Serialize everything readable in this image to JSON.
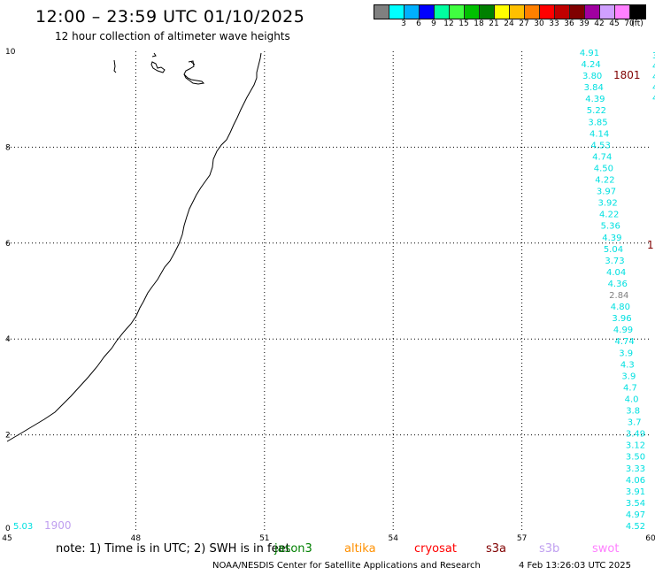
{
  "title": "12:00 – 23:59 UTC 01/10/2025",
  "subtitle": "12 hour collection of altimeter wave heights",
  "legend": {
    "unit": "(ft)",
    "swatches": [
      {
        "color": "#808080",
        "label": ""
      },
      {
        "color": "#00ffff",
        "label": "3"
      },
      {
        "color": "#00b0ff",
        "label": "6"
      },
      {
        "color": "#0000ff",
        "label": "9"
      },
      {
        "color": "#00ffa0",
        "label": "12"
      },
      {
        "color": "#40ff40",
        "label": "15"
      },
      {
        "color": "#00c000",
        "label": "18"
      },
      {
        "color": "#008000",
        "label": "21"
      },
      {
        "color": "#ffff00",
        "label": "24"
      },
      {
        "color": "#ffc000",
        "label": "27"
      },
      {
        "color": "#ff8000",
        "label": "30"
      },
      {
        "color": "#ff0000",
        "label": "33"
      },
      {
        "color": "#c00000",
        "label": "36"
      },
      {
        "color": "#800000",
        "label": "39"
      },
      {
        "color": "#a000a0",
        "label": "42"
      },
      {
        "color": "#d0a0ff",
        "label": "45"
      },
      {
        "color": "#ff80ff",
        "label": "70"
      },
      {
        "color": "#000000",
        "label": ""
      }
    ]
  },
  "axes": {
    "x_ticks": [
      "45",
      "48",
      "51",
      "54",
      "57",
      "60"
    ],
    "y_ticks": [
      "0",
      "2",
      "4",
      "6",
      "8",
      "10"
    ]
  },
  "track_main": {
    "color": "#00e0e0",
    "values": [
      "4.91",
      "4.24",
      "3.80",
      "3.84",
      "4.39",
      "5.22",
      "3.85",
      "4.14",
      "4.53",
      "4.74",
      "4.50",
      "4.22",
      "3.97",
      "3.92",
      "4.22",
      "5.36",
      "4.39",
      "5.04",
      "3.73",
      "4.04",
      "4.36",
      "2.84",
      "4.80",
      "3.96",
      "4.99",
      "4.74",
      "3.9",
      "4.3",
      "3.9",
      "4.7",
      "4.0",
      "3.8",
      "3.7",
      "3.49",
      "3.12",
      "3.50",
      "3.33",
      "4.06",
      "3.91",
      "3.54",
      "4.97",
      "4.52"
    ]
  },
  "track_edge_partial": [
    "3",
    "4",
    "4",
    "4",
    "4"
  ],
  "time_labels": [
    {
      "text": "1801",
      "color": "#800000"
    },
    {
      "text": "1",
      "color": "#800000"
    },
    {
      "text": "1900",
      "color": "#c0a0f0"
    }
  ],
  "bottom_left_value": {
    "text": "5.03",
    "color": "#00e0e0"
  },
  "footer": {
    "note": "note: 1) Time is in UTC; 2) SWH is in feet",
    "satellites": [
      {
        "name": "jason3",
        "color": "#008000"
      },
      {
        "name": "altika",
        "color": "#ff9000"
      },
      {
        "name": "cryosat",
        "color": "#ff0000"
      },
      {
        "name": "s3a",
        "color": "#800000"
      },
      {
        "name": "s3b",
        "color": "#c0a0f0"
      },
      {
        "name": "swot",
        "color": "#ff80ff"
      }
    ]
  },
  "credit": {
    "org": "NOAA/NESDIS Center for Satellite Applications and Research",
    "timestamp": "4 Feb 13:26:03 UTC 2025"
  }
}
